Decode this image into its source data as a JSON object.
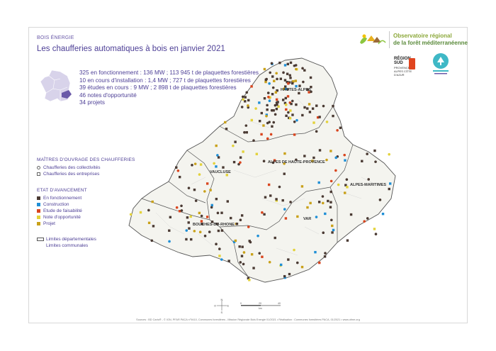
{
  "section_label": "BOIS ÉNERGIE",
  "title": "Les chaufferies automatiques à bois en janvier 2021",
  "stats": [
    "325 en fonctionnement : 136 MW ; 113 945 t de plaquettes forestières",
    "10 en cours d'installation : 1,4 MW ; 727 t de plaquettes forestières",
    "39 études en cours : 9 MW ; 2 898 t de plaquettes forestières",
    "46 notes d'opportunité",
    "34 projets"
  ],
  "legend_owners": {
    "title": "MAÎTRES D'OUVRAGE DES CHAUFFERIES",
    "items": [
      "Chaufferies des collectivités",
      "Chaufferies des entreprises"
    ]
  },
  "legend_status": {
    "title": "ETAT D'AVANCEMENT",
    "items": [
      {
        "label": "En fonctionnement",
        "color": "#4a3a33"
      },
      {
        "label": "Construction",
        "color": "#1f8fd6"
      },
      {
        "label": "Etude de faisabilité",
        "color": "#d9451e"
      },
      {
        "label": "Note d'opportunité",
        "color": "#e3d23a"
      },
      {
        "label": "Projet",
        "color": "#c9a11a"
      }
    ]
  },
  "legend_limits": {
    "dept": "Limites départementales",
    "communes": "Limites communales"
  },
  "departments": [
    "HAUTES-ALPES",
    "ALPES DE HAUTE-PROVENCE",
    "ALPES-MARITIMES",
    "VAUCLUSE",
    "BOUCHES-DU-RHONE",
    "VAR"
  ],
  "observatory": {
    "line1": "Observatoire régional",
    "line2": "de la forêt méditerranéenne"
  },
  "region_logo": {
    "line1": "RÉGION",
    "line2": "SUD",
    "sub": "PROVENCE ALPES CÔTE D'AZUR"
  },
  "compass": {
    "n": "N",
    "s": "S",
    "e": "E",
    "o": "O"
  },
  "scale": {
    "ticks": [
      "0",
      "20",
      "40"
    ],
    "unit": "km"
  },
  "sources": "Sources : BD Carto® - © IGN, PFAR PACA n°9410, Communes forestières - Mission Régionale Bois Energie 01/2021 • Réalisation : Communes forestières PACA, 01/2021 • www.ofme.org",
  "colors": {
    "accent": "#4d3f96",
    "operating": "#4a3a33",
    "construction": "#1f8fd6",
    "study": "#d9451e",
    "note": "#e3d23a",
    "project": "#c9a11a"
  }
}
